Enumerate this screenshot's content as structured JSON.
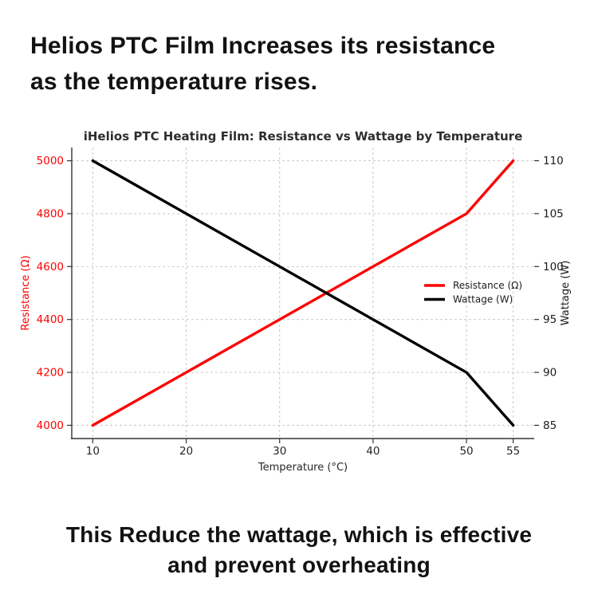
{
  "page": {
    "background": "#ffffff"
  },
  "heading": {
    "line1": "Helios PTC Film Increases its resistance",
    "line2": "as the temperature rises."
  },
  "footer": {
    "line1": "This Reduce the wattage, which is effective",
    "line2": "and prevent overheating"
  },
  "chart_data": {
    "type": "line",
    "title": "iHelios PTC Heating Film: Resistance vs Wattage by Temperature",
    "xlabel": "Temperature (°C)",
    "ylabel_left": "Resistance (Ω)",
    "ylabel_right": "Wattage (W)",
    "x": [
      10,
      20,
      30,
      40,
      50,
      55
    ],
    "series": [
      {
        "name": "Resistance (Ω)",
        "slug": "resistance-line",
        "axis": "left",
        "color": "#ff0000",
        "values": [
          4000,
          4200,
          4400,
          4600,
          4800,
          5000
        ]
      },
      {
        "name": "Wattage (W)",
        "slug": "wattage-line",
        "axis": "right",
        "color": "#000000",
        "values": [
          110,
          105,
          100,
          95,
          90,
          85
        ]
      }
    ],
    "x_ticks": [
      10,
      20,
      30,
      40,
      50,
      55
    ],
    "y_ticks_left": [
      4000,
      4200,
      4400,
      4600,
      4800,
      5000
    ],
    "y_ticks_right": [
      85,
      90,
      95,
      100,
      105,
      110
    ],
    "xlim": [
      7.75,
      57.25
    ],
    "ylim_left": [
      3950,
      5050
    ],
    "ylim_right": [
      83.75,
      111.25
    ],
    "grid": true,
    "legend_position": "center-right",
    "colors": {
      "left_axis_text": "#ff0000",
      "right_axis_text": "#1a1a1a",
      "x_axis_text": "#262626",
      "title_text": "#2e2e2e",
      "grid": "#c9c9c9",
      "spine": "#333333",
      "legend_text": "#1a1a1a"
    }
  }
}
